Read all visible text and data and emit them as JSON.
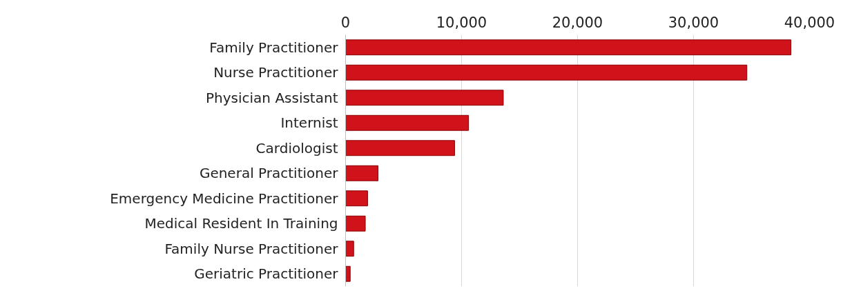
{
  "chart_data": {
    "type": "bar",
    "orientation": "horizontal",
    "categories": [
      "Family Practitioner",
      "Nurse Practitioner",
      "Physician Assistant",
      "Internist",
      "Cardiologist",
      "General Practitioner",
      "Emergency Medicine Practitioner",
      "Medical Resident In Training",
      "Family Nurse Practitioner",
      "Geriatric Practitioner"
    ],
    "values": [
      38400,
      34600,
      13600,
      10600,
      9400,
      2800,
      1900,
      1700,
      700,
      400
    ],
    "color": "#d0121b",
    "xlim": [
      0,
      40000
    ],
    "xticks": [
      {
        "value": 0,
        "label": "0"
      },
      {
        "value": 10000,
        "label": "10,000"
      },
      {
        "value": 20000,
        "label": "20,000"
      },
      {
        "value": 30000,
        "label": "30,000"
      },
      {
        "value": 40000,
        "label": "40,000"
      }
    ],
    "grid": "x"
  }
}
